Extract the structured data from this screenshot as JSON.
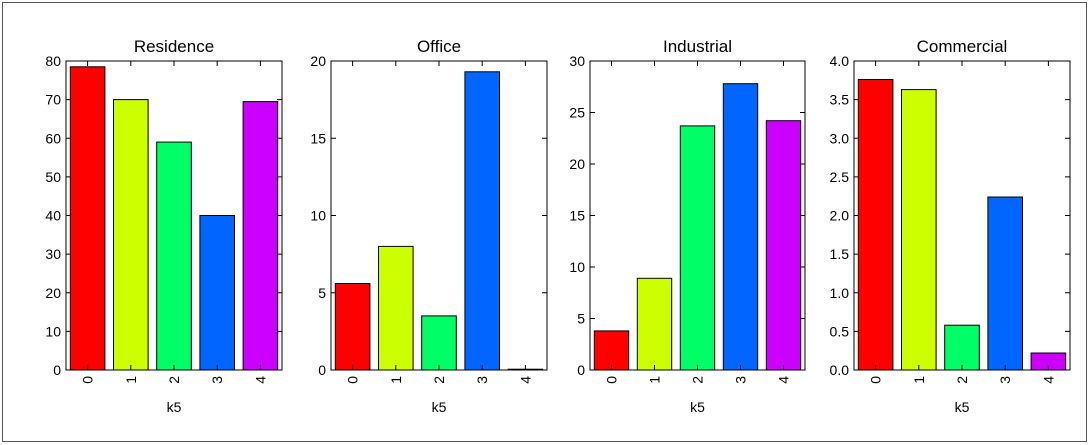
{
  "chart_data": [
    {
      "type": "bar",
      "title": "Residence",
      "xlabel": "k5",
      "ylabel": "",
      "categories": [
        "0",
        "1",
        "2",
        "3",
        "4"
      ],
      "values": [
        78.5,
        70,
        59,
        40,
        69.5
      ],
      "ylim": [
        0,
        80
      ],
      "yticks": [
        "0",
        "10",
        "20",
        "30",
        "40",
        "50",
        "60",
        "70",
        "80"
      ],
      "ytick_values": [
        0,
        10,
        20,
        30,
        40,
        50,
        60,
        70,
        80
      ],
      "colors": [
        "#ff0000",
        "#ccff00",
        "#00ff66",
        "#0066ff",
        "#cc00ff"
      ],
      "grid": false
    },
    {
      "type": "bar",
      "title": "Office",
      "xlabel": "k5",
      "ylabel": "",
      "categories": [
        "0",
        "1",
        "2",
        "3",
        "4"
      ],
      "values": [
        5.6,
        8,
        3.5,
        19.3,
        0.05
      ],
      "ylim": [
        0,
        20
      ],
      "yticks": [
        "0",
        "5",
        "10",
        "15",
        "20"
      ],
      "ytick_values": [
        0,
        5,
        10,
        15,
        20
      ],
      "colors": [
        "#ff0000",
        "#ccff00",
        "#00ff66",
        "#0066ff",
        "#cc00ff"
      ],
      "grid": false
    },
    {
      "type": "bar",
      "title": "Industrial",
      "xlabel": "k5",
      "ylabel": "",
      "categories": [
        "0",
        "1",
        "2",
        "3",
        "4"
      ],
      "values": [
        3.8,
        8.9,
        23.7,
        27.8,
        24.2
      ],
      "ylim": [
        0,
        30
      ],
      "yticks": [
        "0",
        "5",
        "10",
        "15",
        "20",
        "25",
        "30"
      ],
      "ytick_values": [
        0,
        5,
        10,
        15,
        20,
        25,
        30
      ],
      "colors": [
        "#ff0000",
        "#ccff00",
        "#00ff66",
        "#0066ff",
        "#cc00ff"
      ],
      "grid": false
    },
    {
      "type": "bar",
      "title": "Commercial",
      "xlabel": "k5",
      "ylabel": "",
      "categories": [
        "0",
        "1",
        "2",
        "3",
        "4"
      ],
      "values": [
        3.76,
        3.63,
        0.58,
        2.24,
        0.22
      ],
      "ylim": [
        0,
        4
      ],
      "yticks": [
        "0.0",
        "0.5",
        "1.0",
        "1.5",
        "2.0",
        "2.5",
        "3.0",
        "3.5",
        "4.0"
      ],
      "ytick_values": [
        0,
        0.5,
        1,
        1.5,
        2,
        2.5,
        3,
        3.5,
        4
      ],
      "colors": [
        "#ff0000",
        "#ccff00",
        "#00ff66",
        "#0066ff",
        "#cc00ff"
      ],
      "grid": false
    }
  ]
}
